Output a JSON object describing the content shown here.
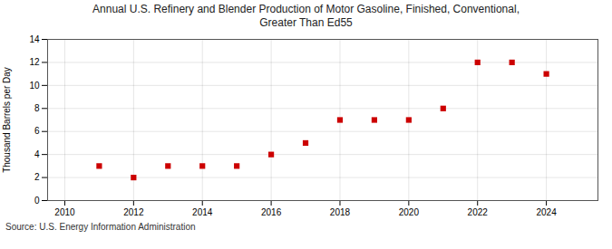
{
  "chart_data": {
    "type": "scatter",
    "title": "Annual U.S. Refinery and Blender Production of Motor Gasoline, Finished, Conventional,\nGreater Than Ed55",
    "ylabel": "Thousand Barrels per Day",
    "source": "Source: U.S. Energy Information Administration",
    "x": [
      2011,
      2012,
      2013,
      2014,
      2015,
      2016,
      2017,
      2018,
      2019,
      2020,
      2021,
      2022,
      2023,
      2024
    ],
    "values": [
      3,
      2,
      3,
      3,
      3,
      4,
      5,
      7,
      7,
      7,
      8,
      12,
      12,
      11
    ],
    "color": "#cc0000",
    "marker": "square",
    "xlim": [
      2009.5,
      2025.5
    ],
    "ylim": [
      0,
      14
    ],
    "xticks": [
      2010,
      2012,
      2014,
      2016,
      2018,
      2020,
      2022,
      2024
    ],
    "yticks": [
      0,
      2,
      4,
      6,
      8,
      10,
      12,
      14
    ],
    "grid": true
  }
}
